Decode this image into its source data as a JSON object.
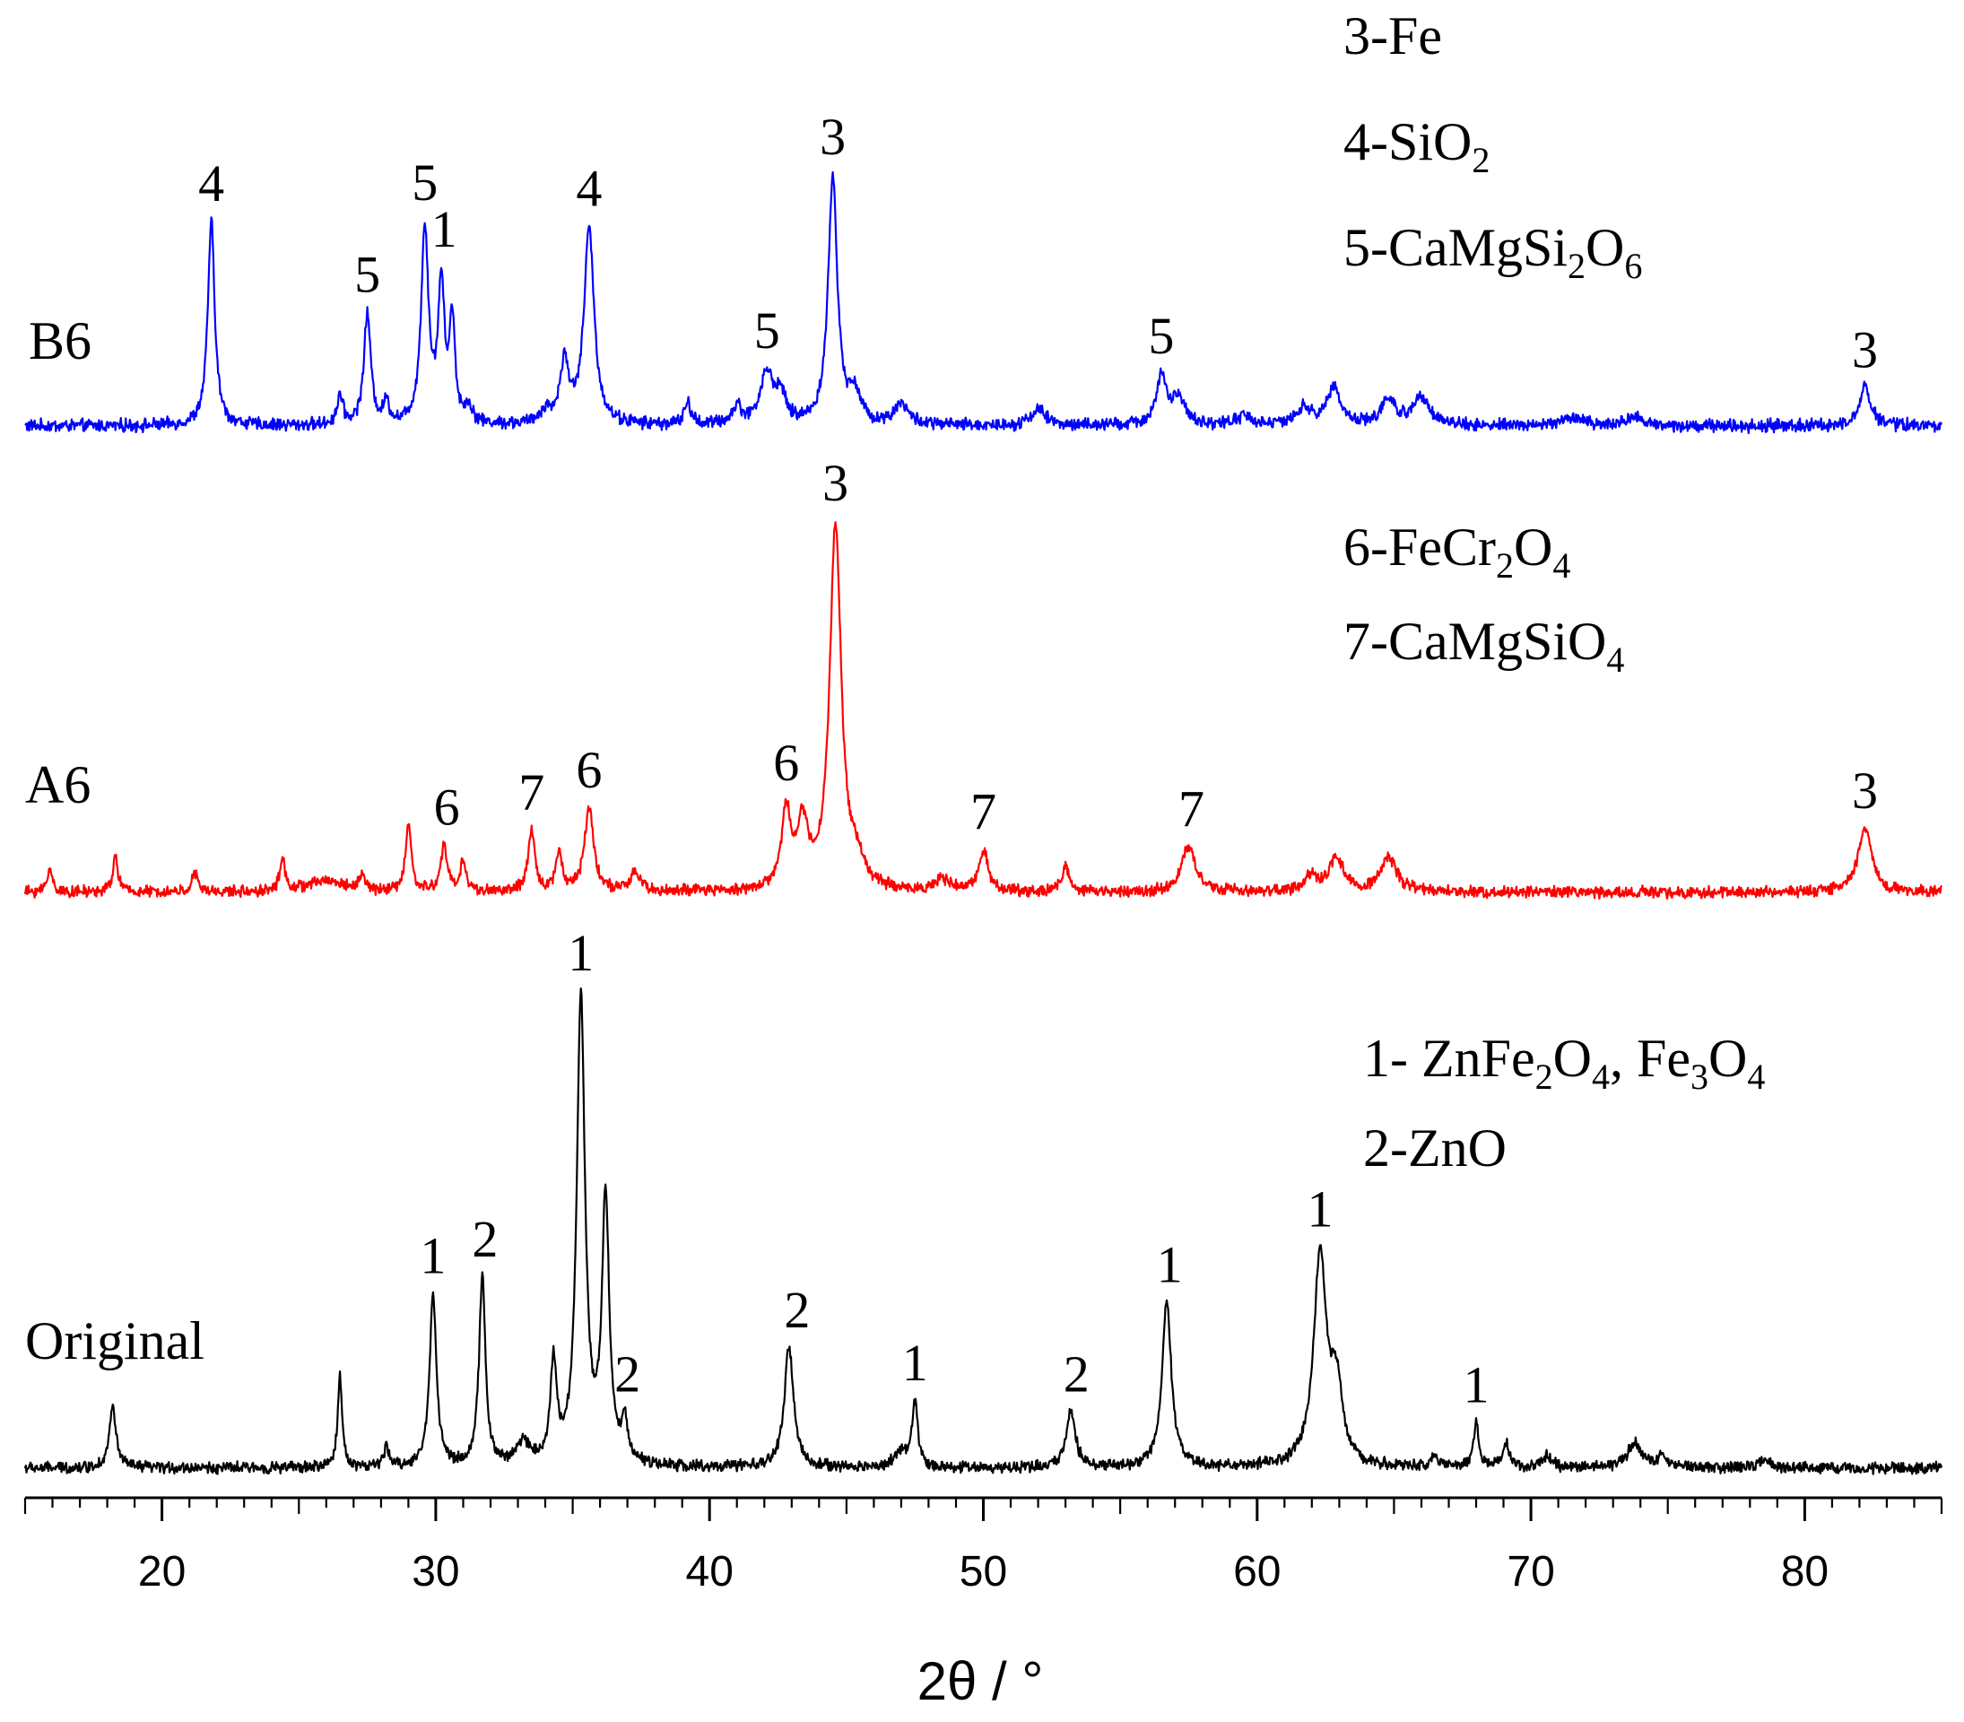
{
  "chart_data": {
    "type": "line",
    "title": "",
    "xlabel": "2θ / °",
    "ylabel": "",
    "xlim": [
      15,
      85
    ],
    "xticks": [
      20,
      30,
      40,
      50,
      60,
      70,
      80
    ],
    "xtick_labels": [
      "20",
      "30",
      "40",
      "50",
      "60",
      "70",
      "80"
    ],
    "grid": false,
    "series": [
      {
        "name": "B6",
        "color": "#0000ff",
        "baseline": 0,
        "noise": 0.06,
        "peaks": [
          [
            21.8,
            2.4,
            0.15
          ],
          [
            26.5,
            0.35,
            0.12
          ],
          [
            27.5,
            1.3,
            0.15
          ],
          [
            28.2,
            0.25,
            0.12
          ],
          [
            29.6,
            2.3,
            0.16
          ],
          [
            30.2,
            1.6,
            0.14
          ],
          [
            30.6,
            1.2,
            0.12
          ],
          [
            31.2,
            0.2,
            0.15
          ],
          [
            34.0,
            0.15,
            0.2
          ],
          [
            34.7,
            0.7,
            0.2
          ],
          [
            35.6,
            2.3,
            0.22
          ],
          [
            39.2,
            0.25,
            0.15
          ],
          [
            41.0,
            0.2,
            0.2
          ],
          [
            42.1,
            0.6,
            0.3
          ],
          [
            42.6,
            0.3,
            0.2
          ],
          [
            44.5,
            2.9,
            0.2
          ],
          [
            45.3,
            0.35,
            0.25
          ],
          [
            47.0,
            0.25,
            0.3
          ],
          [
            52.0,
            0.2,
            0.3
          ],
          [
            56.5,
            0.55,
            0.22
          ],
          [
            57.1,
            0.3,
            0.3
          ],
          [
            59.5,
            0.1,
            0.4
          ],
          [
            61.7,
            0.2,
            0.3
          ],
          [
            62.8,
            0.45,
            0.3
          ],
          [
            64.8,
            0.3,
            0.3
          ],
          [
            66.0,
            0.35,
            0.35
          ],
          [
            71.5,
            0.1,
            0.4
          ],
          [
            73.8,
            0.1,
            0.4
          ],
          [
            82.2,
            0.45,
            0.25
          ]
        ],
        "labels": [
          {
            "x": 21.8,
            "text": "4"
          },
          {
            "x": 27.5,
            "text": "5"
          },
          {
            "x": 29.6,
            "text": "5"
          },
          {
            "x": 30.3,
            "text": "1"
          },
          {
            "x": 35.6,
            "text": "4"
          },
          {
            "x": 42.1,
            "text": "5"
          },
          {
            "x": 44.5,
            "text": "3"
          },
          {
            "x": 56.5,
            "text": "5"
          },
          {
            "x": 82.2,
            "text": "3"
          }
        ]
      },
      {
        "name": "A6",
        "color": "#ff0000",
        "baseline": 0,
        "noise": 0.06,
        "peaks": [
          [
            15.9,
            0.3,
            0.12
          ],
          [
            18.3,
            0.45,
            0.12
          ],
          [
            21.2,
            0.25,
            0.12
          ],
          [
            24.4,
            0.4,
            0.12
          ],
          [
            26.0,
            0.15,
            0.8
          ],
          [
            27.3,
            0.2,
            0.12
          ],
          [
            29.0,
            0.9,
            0.12
          ],
          [
            30.3,
            0.6,
            0.14
          ],
          [
            31.0,
            0.4,
            0.12
          ],
          [
            33.5,
            0.8,
            0.14
          ],
          [
            34.5,
            0.5,
            0.14
          ],
          [
            35.6,
            1.1,
            0.2
          ],
          [
            37.3,
            0.25,
            0.2
          ],
          [
            42.8,
            1.0,
            0.2
          ],
          [
            43.4,
            0.8,
            0.25
          ],
          [
            44.6,
            4.8,
            0.25
          ],
          [
            45.4,
            0.3,
            0.3
          ],
          [
            48.5,
            0.15,
            0.3
          ],
          [
            50.0,
            0.55,
            0.2
          ],
          [
            53.0,
            0.35,
            0.15
          ],
          [
            57.5,
            0.6,
            0.3
          ],
          [
            62.0,
            0.2,
            0.3
          ],
          [
            62.9,
            0.45,
            0.3
          ],
          [
            64.8,
            0.45,
            0.35
          ],
          [
            82.2,
            0.85,
            0.3
          ]
        ],
        "labels": [
          {
            "x": 30.4,
            "text": "6"
          },
          {
            "x": 33.5,
            "text": "7"
          },
          {
            "x": 35.6,
            "text": "6"
          },
          {
            "x": 42.8,
            "text": "6"
          },
          {
            "x": 44.6,
            "text": "3"
          },
          {
            "x": 50.0,
            "text": "7"
          },
          {
            "x": 57.6,
            "text": "7"
          },
          {
            "x": 82.2,
            "text": "3"
          }
        ]
      },
      {
        "name": "Original",
        "color": "#000000",
        "baseline": 0,
        "noise": 0.06,
        "peaks": [
          [
            18.2,
            0.8,
            0.15
          ],
          [
            26.5,
            1.2,
            0.1
          ],
          [
            28.2,
            0.25,
            0.12
          ],
          [
            29.9,
            2.3,
            0.15
          ],
          [
            31.7,
            2.5,
            0.14
          ],
          [
            33.2,
            0.3,
            0.3
          ],
          [
            34.3,
            1.3,
            0.14
          ],
          [
            35.3,
            6.2,
            0.18
          ],
          [
            36.2,
            3.5,
            0.16
          ],
          [
            36.9,
            0.5,
            0.15
          ],
          [
            42.9,
            1.6,
            0.2
          ],
          [
            47.0,
            0.2,
            0.3
          ],
          [
            47.5,
            0.85,
            0.12
          ],
          [
            53.2,
            0.75,
            0.2
          ],
          [
            56.7,
            2.2,
            0.2
          ],
          [
            62.3,
            2.8,
            0.28
          ],
          [
            62.9,
            1.0,
            0.25
          ],
          [
            66.5,
            0.15,
            0.2
          ],
          [
            68.0,
            0.6,
            0.12
          ],
          [
            69.1,
            0.3,
            0.15
          ],
          [
            70.6,
            0.15,
            0.2
          ],
          [
            73.8,
            0.35,
            0.3
          ],
          [
            74.8,
            0.15,
            0.2
          ],
          [
            78.5,
            0.1,
            0.3
          ]
        ],
        "labels": [
          {
            "x": 29.9,
            "text": "1"
          },
          {
            "x": 31.8,
            "text": "2"
          },
          {
            "x": 35.3,
            "text": "1"
          },
          {
            "x": 37.0,
            "text": "2"
          },
          {
            "x": 43.2,
            "text": "2"
          },
          {
            "x": 47.5,
            "text": "1"
          },
          {
            "x": 53.4,
            "text": "2"
          },
          {
            "x": 56.8,
            "text": "1"
          },
          {
            "x": 62.3,
            "text": "1"
          },
          {
            "x": 68.0,
            "text": "1"
          }
        ]
      }
    ],
    "legend_blocks": [
      {
        "for": "B6",
        "lines": [
          [
            {
              "t": "3-Fe"
            }
          ],
          [
            {
              "t": "4-SiO"
            },
            {
              "t": "2",
              "sub": true
            }
          ],
          [
            {
              "t": "5-CaMgSi"
            },
            {
              "t": "2",
              "sub": true
            },
            {
              "t": "O"
            },
            {
              "t": "6",
              "sub": true
            }
          ]
        ]
      },
      {
        "for": "A6",
        "lines": [
          [
            {
              "t": "6-FeCr"
            },
            {
              "t": "2",
              "sub": true
            },
            {
              "t": "O"
            },
            {
              "t": "4",
              "sub": true
            }
          ],
          [
            {
              "t": "7-CaMgSiO"
            },
            {
              "t": "4",
              "sub": true
            }
          ]
        ]
      },
      {
        "for": "Original",
        "lines": [
          [
            {
              "t": "1- ZnFe"
            },
            {
              "t": "2",
              "sub": true
            },
            {
              "t": "O"
            },
            {
              "t": "4",
              "sub": true
            },
            {
              "t": ", Fe"
            },
            {
              "t": "3",
              "sub": true
            },
            {
              "t": "O"
            },
            {
              "t": "4",
              "sub": true
            }
          ],
          [
            {
              "t": "2-ZnO"
            }
          ]
        ]
      }
    ]
  }
}
